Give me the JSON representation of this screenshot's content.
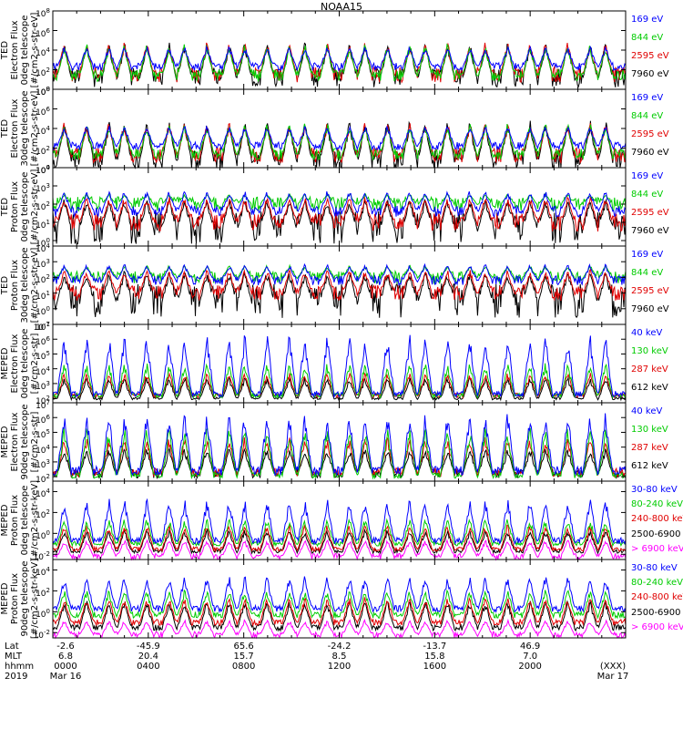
{
  "title": "NOAA15",
  "chart_data": [
    {
      "type": "line",
      "instrument": "TED",
      "ylabel": [
        "TED",
        "Electron Flux",
        "0deg telescope",
        "[#/cm2-s-str-eV]"
      ],
      "yticks": [
        {
          "e": 8
        },
        {
          "e": 6
        },
        {
          "e": 4
        },
        {
          "e": 2
        },
        {
          "e": 0
        }
      ],
      "ylim_exp": [
        0,
        8
      ],
      "series": [
        {
          "name": "7960 eV",
          "color": "#000000",
          "base": 1.2,
          "spike": 5.0,
          "noise": 1.0
        },
        {
          "name": "2595 eV",
          "color": "#e00000",
          "base": 1.5,
          "spike": 5.0,
          "noise": 0.8
        },
        {
          "name": "844 eV",
          "color": "#00cc00",
          "base": 1.4,
          "spike": 4.8,
          "noise": 0.6
        },
        {
          "name": "169 eV",
          "color": "#0000ff",
          "base": 2.3,
          "spike": 4.5,
          "noise": 0.4
        }
      ]
    },
    {
      "type": "line",
      "instrument": "TED",
      "ylabel": [
        "TED",
        "Electron Flux",
        "30deg telescope",
        "[#/cm2-s-str-eV]"
      ],
      "yticks": [
        {
          "e": 8
        },
        {
          "e": 6
        },
        {
          "e": 4
        },
        {
          "e": 2
        },
        {
          "e": 0
        }
      ],
      "ylim_exp": [
        0,
        8
      ],
      "series": [
        {
          "name": "7960 eV",
          "color": "#000000",
          "base": 0.8,
          "spike": 5.0,
          "noise": 1.0
        },
        {
          "name": "2595 eV",
          "color": "#e00000",
          "base": 1.3,
          "spike": 4.8,
          "noise": 0.8
        },
        {
          "name": "844 eV",
          "color": "#00cc00",
          "base": 1.4,
          "spike": 4.7,
          "noise": 0.6
        },
        {
          "name": "169 eV",
          "color": "#0000ff",
          "base": 2.2,
          "spike": 4.4,
          "noise": 0.4
        }
      ]
    },
    {
      "type": "line",
      "instrument": "TED",
      "ylabel": [
        "TED",
        "Proton Flux",
        "0deg telescope",
        "[#/cm2-s-str-eV]"
      ],
      "yticks": [
        {
          "e": 4
        },
        {
          "e": 3
        },
        {
          "e": 2
        },
        {
          "e": 1
        },
        {
          "e": 0
        }
      ],
      "ylim_exp": [
        -0.3,
        4
      ],
      "series": [
        {
          "name": "7960 eV",
          "color": "#000000",
          "base": 0.7,
          "spike": 2.4,
          "noise": 0.9
        },
        {
          "name": "2595 eV",
          "color": "#e00000",
          "base": 1.0,
          "spike": 2.5,
          "noise": 0.5
        },
        {
          "name": "844 eV",
          "color": "#00cc00",
          "base": 2.0,
          "spike": 2.6,
          "noise": 0.4
        },
        {
          "name": "169 eV",
          "color": "#0000ff",
          "base": 1.6,
          "spike": 2.8,
          "noise": 0.3
        }
      ]
    },
    {
      "type": "line",
      "instrument": "TED",
      "ylabel": [
        "TED",
        "Proton Flux",
        "30deg telescope",
        "[#/cm2-s-str-eV]"
      ],
      "yticks": [
        {
          "e": 4
        },
        {
          "e": 3
        },
        {
          "e": 2
        },
        {
          "e": 1
        },
        {
          "e": 0
        },
        {
          "e": -1
        }
      ],
      "ylim_exp": [
        -1,
        4
      ],
      "series": [
        {
          "name": "7960 eV",
          "color": "#000000",
          "base": 0.5,
          "spike": 2.5,
          "noise": 1.1
        },
        {
          "name": "2595 eV",
          "color": "#e00000",
          "base": 1.0,
          "spike": 2.6,
          "noise": 0.5
        },
        {
          "name": "844 eV",
          "color": "#00cc00",
          "base": 2.0,
          "spike": 2.8,
          "noise": 0.4
        },
        {
          "name": "169 eV",
          "color": "#0000ff",
          "base": 1.8,
          "spike": 2.9,
          "noise": 0.3
        }
      ]
    },
    {
      "type": "line",
      "instrument": "MEPED",
      "ylabel": [
        "MEPED",
        "Electron Flux",
        "0deg telescope",
        "[#/cm2-s-str]"
      ],
      "yticks": [
        {
          "e": 7
        },
        {
          "e": 6
        },
        {
          "e": 5
        },
        {
          "e": 4
        },
        {
          "e": 3
        },
        {
          "e": 2
        }
      ],
      "ylim_exp": [
        1.7,
        7
      ],
      "series": [
        {
          "name": "612 keV",
          "color": "#000000",
          "base": 2.0,
          "spike": 3.5,
          "noise": 0.1
        },
        {
          "name": "287 keV",
          "color": "#e00000",
          "base": 2.2,
          "spike": 3.8,
          "noise": 0.15
        },
        {
          "name": "130 keV",
          "color": "#00cc00",
          "base": 2.2,
          "spike": 4.5,
          "noise": 0.15
        },
        {
          "name": "40 keV",
          "color": "#0000ff",
          "base": 2.3,
          "spike": 6.5,
          "noise": 0.2
        }
      ]
    },
    {
      "type": "line",
      "instrument": "MEPED",
      "ylabel": [
        "MEPED",
        "Electron Flux",
        "90deg telescope",
        "[#/cm2-s-str]"
      ],
      "yticks": [
        {
          "e": 7
        },
        {
          "e": 6
        },
        {
          "e": 5
        },
        {
          "e": 4
        },
        {
          "e": 3
        },
        {
          "e": 2
        }
      ],
      "ylim_exp": [
        1.7,
        7
      ],
      "series": [
        {
          "name": "612 keV",
          "color": "#000000",
          "base": 2.2,
          "spike": 4.0,
          "noise": 0.3
        },
        {
          "name": "287 keV",
          "color": "#e00000",
          "base": 2.3,
          "spike": 4.8,
          "noise": 0.3
        },
        {
          "name": "130 keV",
          "color": "#00cc00",
          "base": 2.1,
          "spike": 5.5,
          "noise": 0.2
        },
        {
          "name": "40 keV",
          "color": "#0000ff",
          "base": 2.4,
          "spike": 6.5,
          "noise": 0.3
        }
      ]
    },
    {
      "type": "line",
      "instrument": "MEPED",
      "ylabel": [
        "MEPED",
        "Proton Flux",
        "0deg telescope",
        "[#/cm2-s-str-keV]"
      ],
      "yticks": [
        {
          "e": 4
        },
        {
          "e": 2
        },
        {
          "e": 0
        },
        {
          "e": -2
        }
      ],
      "ylim_exp": [
        -2.5,
        5
      ],
      "series": [
        {
          "name": "> 6900 keV",
          "color": "#ff00ff",
          "base": -2.2,
          "spike": -0.5,
          "noise": 0.3
        },
        {
          "name": "2500-6900",
          "color": "#000000",
          "base": -1.7,
          "spike": 0.5,
          "noise": 0.2
        },
        {
          "name": "240-800 keV",
          "color": "#e00000",
          "base": -1.5,
          "spike": 1.0,
          "noise": 0.2
        },
        {
          "name": "80-240 keV",
          "color": "#00cc00",
          "base": -1.0,
          "spike": 1.5,
          "noise": 0.2
        },
        {
          "name": "30-80 keV",
          "color": "#0000ff",
          "base": -0.7,
          "spike": 3.5,
          "noise": 0.3
        }
      ]
    },
    {
      "type": "line",
      "instrument": "MEPED",
      "ylabel": [
        "MEPED",
        "Proton Flux",
        "90deg telescope",
        "[#/cm2-s-str-keV]"
      ],
      "yticks": [
        {
          "e": 4
        },
        {
          "e": 2
        },
        {
          "e": 0
        },
        {
          "e": -2
        }
      ],
      "ylim_exp": [
        -2.5,
        5
      ],
      "series": [
        {
          "name": "> 6900 keV",
          "color": "#ff00ff",
          "base": -2.2,
          "spike": -0.7,
          "noise": 0.3
        },
        {
          "name": "2500-6900",
          "color": "#000000",
          "base": -1.5,
          "spike": 1.2,
          "noise": 0.3
        },
        {
          "name": "240-800 keV",
          "color": "#e00000",
          "base": -1.0,
          "spike": 1.5,
          "noise": 0.3
        },
        {
          "name": "80-240 keV",
          "color": "#00cc00",
          "base": -0.3,
          "spike": 2.2,
          "noise": 0.3
        },
        {
          "name": "30-80 keV",
          "color": "#0000ff",
          "base": 0.3,
          "spike": 3.6,
          "noise": 0.3
        }
      ]
    }
  ],
  "xaxis": {
    "row_labels": [
      "Lat",
      "MLT",
      "hhmm",
      "2019"
    ],
    "ticks": [
      {
        "lat": "-2.6",
        "mlt": "6.8",
        "hhmm": "0000",
        "date": "Mar 16"
      },
      {
        "lat": "-45.9",
        "mlt": "20.4",
        "hhmm": "0400",
        "date": ""
      },
      {
        "lat": "65.6",
        "mlt": "15.7",
        "hhmm": "0800",
        "date": ""
      },
      {
        "lat": "-24.2",
        "mlt": "8.5",
        "hhmm": "1200",
        "date": ""
      },
      {
        "lat": "-13.7",
        "mlt": "15.8",
        "hhmm": "1600",
        "date": ""
      },
      {
        "lat": "46.9",
        "mlt": "7.0",
        "hhmm": "2000",
        "date": ""
      },
      {
        "lat": "",
        "mlt": "",
        "hhmm": "(XXX)",
        "date": "Mar 17"
      }
    ]
  }
}
